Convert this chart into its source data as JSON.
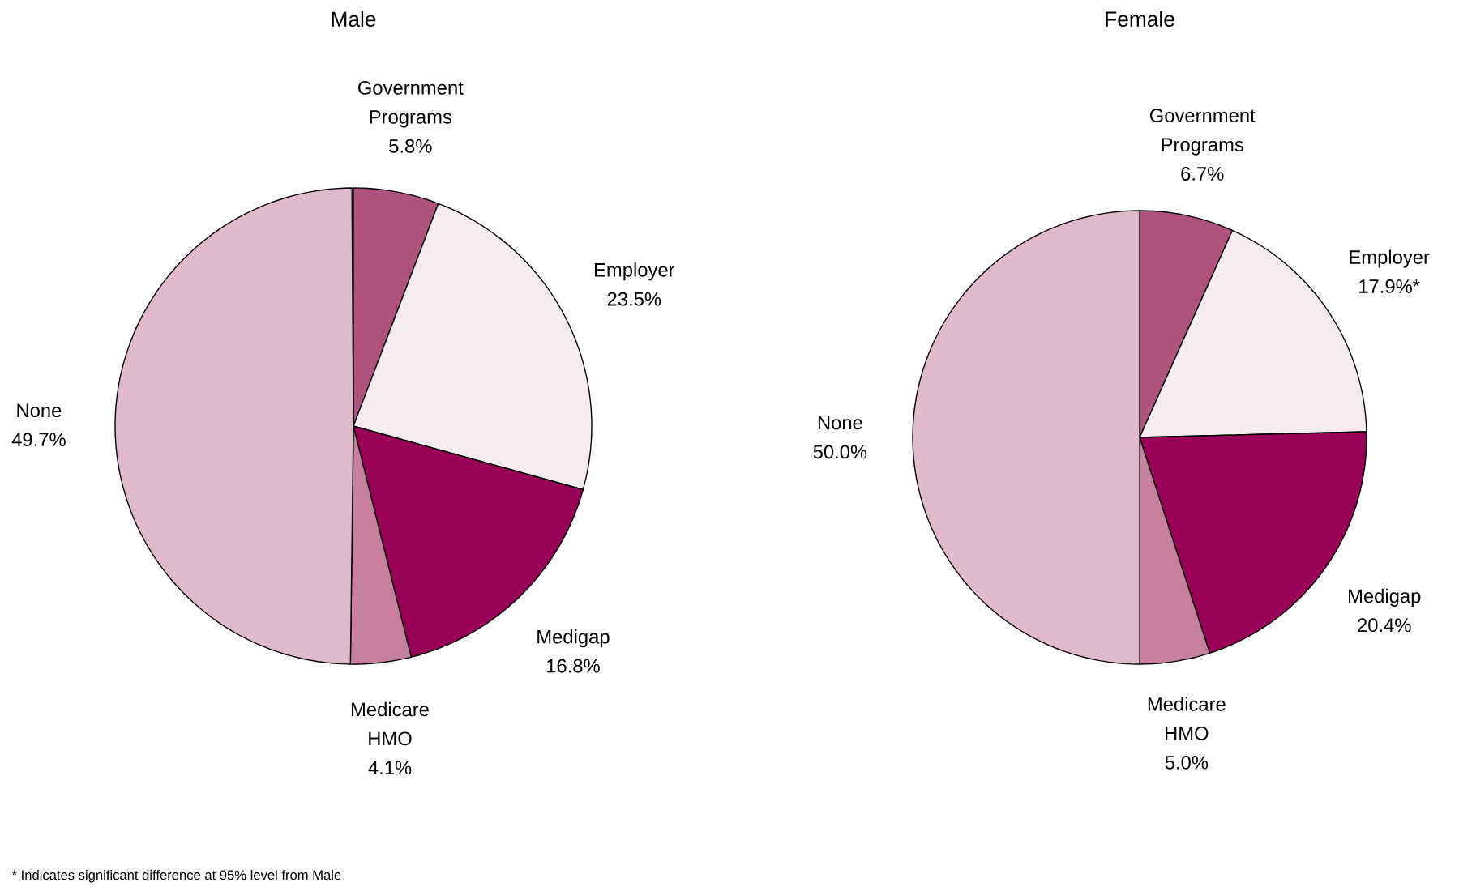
{
  "chart_data": [
    {
      "type": "pie",
      "title": "Male",
      "categories": [
        "Government Programs",
        "Employer",
        "Medigap",
        "Medicare HMO",
        "None"
      ],
      "values": [
        5.8,
        23.5,
        16.8,
        4.1,
        49.7
      ],
      "value_labels": [
        "5.8%",
        "23.5%",
        "16.8%",
        "4.1%",
        "49.7%"
      ],
      "colors": [
        "#b0527f",
        "#f6ecf0",
        "#990057",
        "#c8809f",
        "#e0b9cb"
      ],
      "annotations": [
        "* Indicates significant difference at 95% level from Male"
      ]
    },
    {
      "type": "pie",
      "title": "Female",
      "categories": [
        "Government Programs",
        "Employer",
        "Medigap",
        "Medicare HMO",
        "None"
      ],
      "values": [
        6.7,
        17.9,
        20.4,
        5.0,
        50.0
      ],
      "value_labels": [
        "6.7%",
        "17.9%*",
        "20.4%",
        "5.0%",
        "50.0%"
      ],
      "colors": [
        "#b0527f",
        "#f6ecf0",
        "#990057",
        "#c8809f",
        "#e0b9cb"
      ]
    }
  ]
}
